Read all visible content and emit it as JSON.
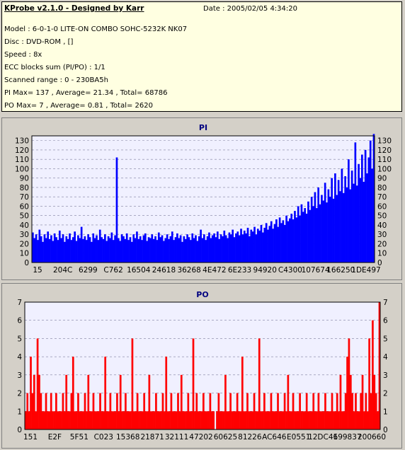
{
  "header": {
    "title": "KProbe v2.1.0 - Designed by Karr",
    "date": "Date : 2005/02/05 4:34:20",
    "lines": [
      "Model : 6-0-1-0 LITE-ON COMBO SOHC-5232K NK07",
      "Disc : DVD-ROM ,  []",
      "Speed : 8x",
      "ECC blocks sum (PI/PO) : 1/1",
      "Scanned range : 0 - 230BA5h",
      "PI Max= 137 , Average= 21.34 , Total= 68786",
      "PO Max= 7 , Average= 0.81 , Total= 2620"
    ]
  },
  "chart_data": [
    {
      "type": "bar",
      "title": "PI",
      "xlabel": "",
      "ylabel": "",
      "color": "#0000ff",
      "background": "#f0f0ff",
      "ylim": [
        0,
        135
      ],
      "yticks": [
        0,
        10,
        20,
        30,
        40,
        50,
        60,
        70,
        80,
        90,
        100,
        110,
        120,
        130
      ],
      "x_tick_labels": [
        "15",
        "204C",
        "6299",
        "C762",
        "16504",
        "24618",
        "36268",
        "4E472",
        "6E233",
        "94920",
        "C4300",
        "107674",
        "166250",
        "1DE497"
      ],
      "grid": true,
      "series": [
        {
          "values": [
            32,
            26,
            30,
            24,
            35,
            28,
            22,
            30,
            26,
            33,
            25,
            29,
            23,
            31,
            27,
            24,
            34,
            26,
            30,
            22,
            28,
            25,
            31,
            24,
            27,
            33,
            23,
            29,
            26,
            38,
            25,
            28,
            24,
            30,
            27,
            22,
            31,
            26,
            29,
            24,
            35,
            27,
            25,
            30,
            23,
            28,
            26,
            32,
            24,
            29,
            112,
            26,
            23,
            30,
            28,
            25,
            31,
            24,
            27,
            22,
            30,
            26,
            33,
            25,
            28,
            24,
            29,
            31,
            23,
            27,
            26,
            30,
            25,
            28,
            24,
            32,
            27,
            29,
            23,
            26,
            30,
            25,
            28,
            33,
            24,
            27,
            31,
            26,
            29,
            22,
            28,
            25,
            30,
            27,
            24,
            31,
            26,
            29,
            23,
            28,
            35,
            26,
            30,
            24,
            28,
            32,
            26,
            29,
            31,
            27,
            33,
            25,
            30,
            28,
            34,
            29,
            26,
            32,
            30,
            35,
            27,
            31,
            33,
            29,
            36,
            30,
            34,
            31,
            37,
            28,
            35,
            33,
            38,
            30,
            36,
            34,
            40,
            32,
            37,
            42,
            35,
            39,
            44,
            36,
            41,
            46,
            38,
            48,
            42,
            45,
            40,
            50,
            44,
            47,
            52,
            46,
            55,
            48,
            60,
            50,
            62,
            54,
            58,
            52,
            65,
            56,
            70,
            60,
            75,
            58,
            80,
            62,
            72,
            66,
            85,
            64,
            78,
            70,
            90,
            68,
            95,
            72,
            88,
            76,
            100,
            74,
            92,
            80,
            110,
            78,
            98,
            84,
            128,
            82,
            105,
            90,
            115,
            86,
            120,
            95,
            112,
            130,
            100,
            137
          ]
        }
      ]
    },
    {
      "type": "bar",
      "title": "PO",
      "xlabel": "",
      "ylabel": "",
      "color": "#ff0000",
      "background": "#f0f0ff",
      "ylim": [
        0,
        7
      ],
      "yticks": [
        0,
        1,
        2,
        3,
        4,
        5,
        6,
        7
      ],
      "x_tick_labels": [
        "151",
        "E2F",
        "5F51",
        "C023",
        "15368",
        "21871",
        "32111",
        "47202",
        "60625",
        "81226",
        "AC646",
        "E0551",
        "12DC46",
        "199837",
        "200660"
      ],
      "grid": true,
      "series": [
        {
          "values": [
            1,
            2,
            1,
            4,
            2,
            3,
            1,
            5,
            3,
            2,
            1,
            1,
            2,
            1,
            1,
            2,
            1,
            1,
            2,
            1,
            1,
            1,
            2,
            1,
            3,
            1,
            1,
            2,
            4,
            1,
            1,
            2,
            1,
            1,
            1,
            2,
            1,
            3,
            1,
            1,
            2,
            1,
            1,
            1,
            2,
            1,
            1,
            4,
            1,
            1,
            2,
            1,
            1,
            1,
            2,
            1,
            3,
            1,
            1,
            2,
            1,
            1,
            1,
            5,
            1,
            1,
            2,
            1,
            1,
            1,
            2,
            1,
            1,
            3,
            1,
            1,
            1,
            2,
            1,
            1,
            1,
            2,
            1,
            4,
            1,
            1,
            2,
            1,
            1,
            1,
            2,
            1,
            3,
            1,
            1,
            1,
            2,
            1,
            1,
            5,
            1,
            2,
            1,
            1,
            1,
            2,
            1,
            1,
            1,
            2,
            1,
            1,
            0,
            1,
            2,
            1,
            1,
            1,
            3,
            1,
            1,
            2,
            1,
            1,
            1,
            2,
            1,
            1,
            4,
            1,
            1,
            2,
            1,
            1,
            1,
            2,
            1,
            1,
            5,
            1,
            1,
            2,
            1,
            1,
            1,
            2,
            1,
            1,
            1,
            2,
            1,
            1,
            1,
            2,
            1,
            3,
            1,
            1,
            2,
            1,
            1,
            1,
            2,
            1,
            1,
            1,
            2,
            1,
            1,
            1,
            2,
            1,
            1,
            2,
            1,
            1,
            1,
            2,
            1,
            1,
            1,
            2,
            1,
            1,
            2,
            1,
            3,
            1,
            1,
            2,
            4,
            5,
            3,
            2,
            1,
            2,
            1,
            1,
            2,
            3,
            1,
            2,
            1,
            5,
            2,
            6,
            3,
            2,
            1,
            7
          ]
        }
      ]
    }
  ]
}
